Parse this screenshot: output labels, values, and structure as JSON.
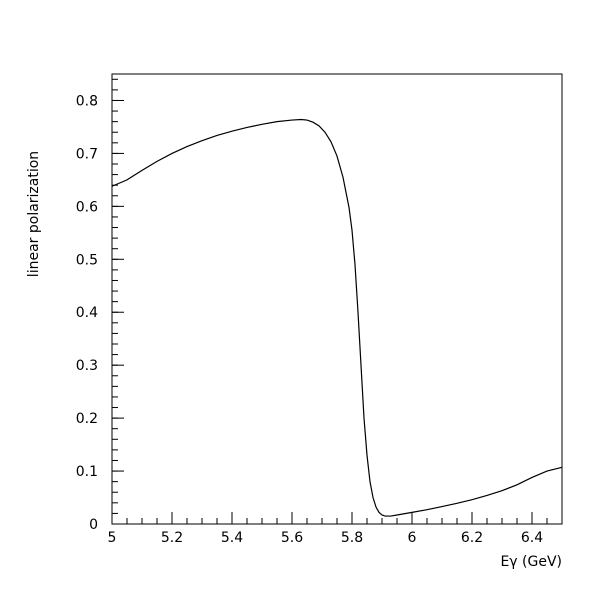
{
  "chart_data": {
    "type": "line",
    "title": "",
    "xlabel": "Eγ (GeV)",
    "ylabel": "linear polarization",
    "xlim": [
      5.0,
      6.5
    ],
    "ylim": [
      0.0,
      0.85
    ],
    "x_ticks": [
      5.0,
      5.2,
      5.4,
      5.6,
      5.8,
      6.0,
      6.2,
      6.4
    ],
    "x_tick_labels": [
      "5",
      "5.2",
      "5.4",
      "5.6",
      "5.8",
      "6",
      "6.2",
      "6.4"
    ],
    "x_minor_step": 0.05,
    "y_ticks": [
      0,
      0.1,
      0.2,
      0.3,
      0.4,
      0.5,
      0.6,
      0.7,
      0.8
    ],
    "y_tick_labels": [
      "0",
      "0.1",
      "0.2",
      "0.3",
      "0.4",
      "0.5",
      "0.6",
      "0.7",
      "0.8"
    ],
    "y_minor_step": 0.02,
    "grid": false,
    "legend": "none",
    "line_color": "#000000",
    "series": [
      {
        "x": [
          5.0,
          5.05,
          5.1,
          5.15,
          5.2,
          5.25,
          5.3,
          5.35,
          5.4,
          5.45,
          5.5,
          5.55,
          5.6,
          5.63,
          5.65,
          5.67,
          5.69,
          5.71,
          5.73,
          5.75,
          5.77,
          5.79,
          5.8,
          5.81,
          5.82,
          5.83,
          5.84,
          5.85,
          5.86,
          5.87,
          5.88,
          5.89,
          5.9,
          5.91,
          5.92,
          5.93,
          5.95,
          6.0,
          6.05,
          6.1,
          6.15,
          6.2,
          6.25,
          6.3,
          6.35,
          6.4,
          6.45,
          6.5
        ],
        "y": [
          0.638,
          0.65,
          0.668,
          0.685,
          0.7,
          0.713,
          0.724,
          0.734,
          0.742,
          0.749,
          0.755,
          0.76,
          0.763,
          0.764,
          0.763,
          0.759,
          0.752,
          0.74,
          0.722,
          0.695,
          0.655,
          0.598,
          0.555,
          0.49,
          0.4,
          0.3,
          0.2,
          0.13,
          0.08,
          0.05,
          0.032,
          0.022,
          0.017,
          0.015,
          0.015,
          0.015,
          0.017,
          0.022,
          0.027,
          0.033,
          0.039,
          0.046,
          0.054,
          0.063,
          0.074,
          0.088,
          0.1,
          0.107
        ]
      }
    ]
  }
}
